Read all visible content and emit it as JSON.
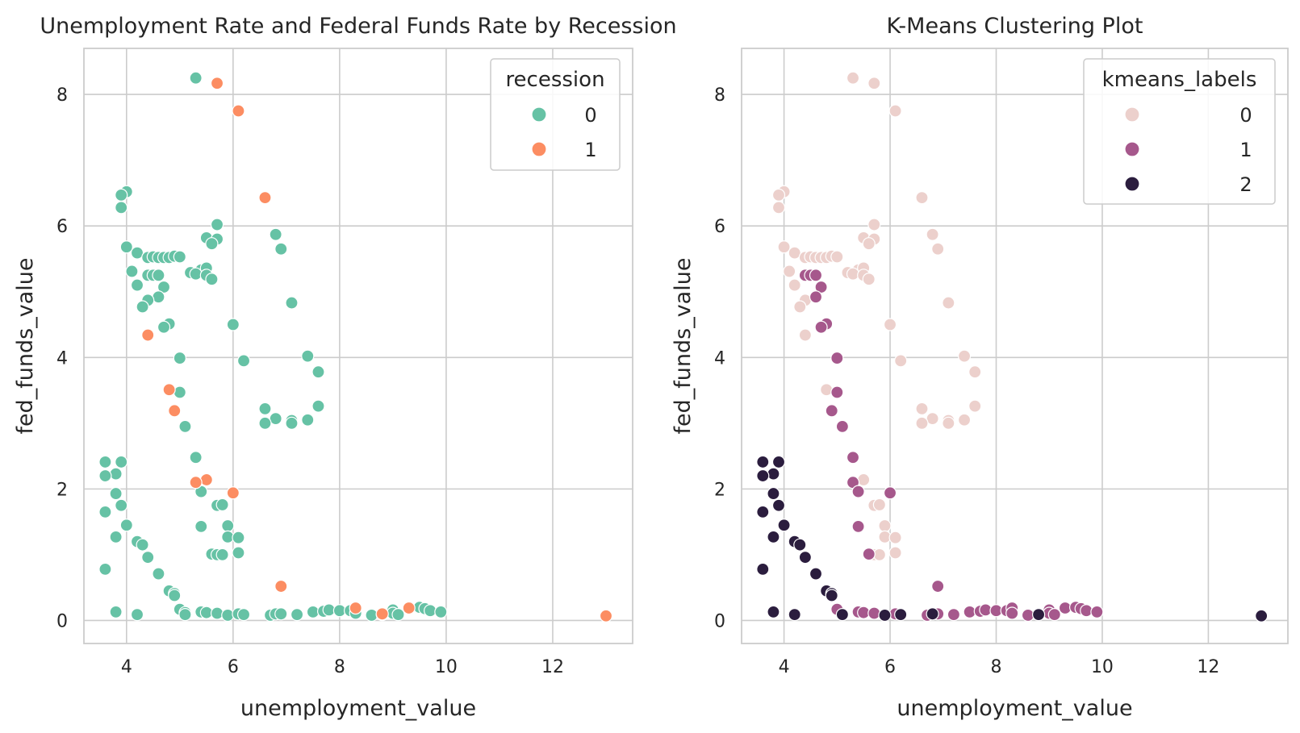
{
  "chart_data": [
    {
      "type": "scatter",
      "title": "Unemployment Rate and Federal Funds Rate by Recession",
      "xlabel": "unemployment_value",
      "ylabel": "fed_funds_value",
      "xlim": [
        3.2,
        13.5
      ],
      "ylim": [
        -0.35,
        8.7
      ],
      "xticks": [
        "4",
        "6",
        "8",
        "10",
        "12"
      ],
      "yticks": [
        "0",
        "2",
        "4",
        "6",
        "8"
      ],
      "grid": true,
      "legend": {
        "title": "recession",
        "placement": "top-right"
      },
      "series": [
        {
          "name": "0",
          "color": "#66c2a5",
          "points": [
            [
              5.3,
              8.25
            ],
            [
              4.0,
              6.52
            ],
            [
              3.9,
              6.47
            ],
            [
              3.9,
              6.28
            ],
            [
              5.7,
              6.02
            ],
            [
              6.8,
              5.87
            ],
            [
              4.0,
              5.68
            ],
            [
              6.9,
              5.65
            ],
            [
              5.5,
              5.82
            ],
            [
              5.7,
              5.8
            ],
            [
              5.6,
              5.73
            ],
            [
              4.2,
              5.59
            ],
            [
              4.4,
              5.52
            ],
            [
              4.5,
              5.53
            ],
            [
              4.6,
              5.52
            ],
            [
              4.7,
              5.52
            ],
            [
              4.8,
              5.52
            ],
            [
              4.9,
              5.54
            ],
            [
              5.0,
              5.53
            ],
            [
              5.4,
              5.33
            ],
            [
              5.5,
              5.36
            ],
            [
              5.2,
              5.29
            ],
            [
              5.3,
              5.27
            ],
            [
              4.1,
              5.31
            ],
            [
              4.4,
              5.25
            ],
            [
              4.5,
              5.25
            ],
            [
              4.6,
              5.25
            ],
            [
              5.5,
              5.25
            ],
            [
              5.6,
              5.19
            ],
            [
              4.2,
              5.1
            ],
            [
              4.7,
              5.07
            ],
            [
              4.6,
              4.92
            ],
            [
              4.4,
              4.87
            ],
            [
              4.3,
              4.77
            ],
            [
              7.1,
              4.83
            ],
            [
              4.8,
              4.51
            ],
            [
              4.7,
              4.46
            ],
            [
              6.0,
              4.5
            ],
            [
              7.4,
              4.02
            ],
            [
              5.0,
              3.99
            ],
            [
              6.2,
              3.95
            ],
            [
              7.6,
              3.78
            ],
            [
              5.0,
              3.47
            ],
            [
              7.6,
              3.26
            ],
            [
              6.6,
              3.22
            ],
            [
              6.8,
              3.07
            ],
            [
              7.1,
              3.04
            ],
            [
              7.4,
              3.05
            ],
            [
              6.6,
              3.0
            ],
            [
              7.1,
              3.0
            ],
            [
              5.1,
              2.95
            ],
            [
              5.3,
              2.48
            ],
            [
              3.6,
              2.41
            ],
            [
              3.9,
              2.41
            ],
            [
              3.8,
              2.23
            ],
            [
              3.6,
              2.2
            ],
            [
              5.4,
              1.96
            ],
            [
              3.8,
              1.93
            ],
            [
              3.9,
              1.75
            ],
            [
              5.7,
              1.75
            ],
            [
              5.8,
              1.76
            ],
            [
              3.6,
              1.65
            ],
            [
              4.0,
              1.45
            ],
            [
              5.4,
              1.43
            ],
            [
              5.9,
              1.44
            ],
            [
              3.8,
              1.27
            ],
            [
              5.9,
              1.27
            ],
            [
              6.1,
              1.26
            ],
            [
              4.2,
              1.2
            ],
            [
              4.3,
              1.15
            ],
            [
              5.6,
              1.01
            ],
            [
              5.7,
              1.0
            ],
            [
              5.8,
              1.0
            ],
            [
              6.1,
              1.03
            ],
            [
              4.4,
              0.96
            ],
            [
              3.6,
              0.78
            ],
            [
              4.6,
              0.71
            ],
            [
              4.8,
              0.45
            ],
            [
              4.9,
              0.41
            ],
            [
              4.9,
              0.38
            ],
            [
              5.0,
              0.17
            ],
            [
              5.1,
              0.12
            ],
            [
              5.1,
              0.09
            ],
            [
              5.4,
              0.13
            ],
            [
              5.5,
              0.12
            ],
            [
              5.7,
              0.11
            ],
            [
              5.9,
              0.08
            ],
            [
              6.1,
              0.1
            ],
            [
              6.2,
              0.09
            ],
            [
              6.7,
              0.08
            ],
            [
              6.8,
              0.1
            ],
            [
              6.9,
              0.1
            ],
            [
              7.2,
              0.09
            ],
            [
              7.5,
              0.13
            ],
            [
              7.7,
              0.14
            ],
            [
              7.8,
              0.16
            ],
            [
              8.0,
              0.15
            ],
            [
              8.2,
              0.15
            ],
            [
              8.3,
              0.11
            ],
            [
              8.6,
              0.08
            ],
            [
              8.8,
              0.09
            ],
            [
              9.0,
              0.16
            ],
            [
              9.0,
              0.11
            ],
            [
              9.1,
              0.09
            ],
            [
              9.5,
              0.2
            ],
            [
              9.6,
              0.18
            ],
            [
              9.7,
              0.15
            ],
            [
              9.9,
              0.13
            ],
            [
              3.8,
              0.13
            ],
            [
              4.2,
              0.09
            ]
          ]
        },
        {
          "name": "1",
          "color": "#fc8d62",
          "points": [
            [
              5.7,
              8.17
            ],
            [
              6.1,
              7.75
            ],
            [
              6.6,
              6.43
            ],
            [
              4.4,
              4.34
            ],
            [
              4.8,
              3.51
            ],
            [
              4.9,
              3.19
            ],
            [
              5.5,
              2.14
            ],
            [
              5.3,
              2.1
            ],
            [
              6.0,
              1.94
            ],
            [
              6.9,
              0.52
            ],
            [
              8.3,
              0.19
            ],
            [
              9.3,
              0.19
            ],
            [
              8.8,
              0.1
            ],
            [
              13.0,
              0.07
            ]
          ]
        }
      ]
    },
    {
      "type": "scatter",
      "title": "K-Means Clustering Plot",
      "xlabel": "unemployment_value",
      "ylabel": "fed_funds_value",
      "xlim": [
        3.2,
        13.5
      ],
      "ylim": [
        -0.35,
        8.7
      ],
      "xticks": [
        "4",
        "6",
        "8",
        "10",
        "12"
      ],
      "yticks": [
        "0",
        "2",
        "4",
        "6",
        "8"
      ],
      "grid": true,
      "legend": {
        "title": "kmeans_labels",
        "placement": "top-right"
      },
      "series": [
        {
          "name": "0",
          "color": "#ecd0cc",
          "points": [
            [
              5.3,
              8.25
            ],
            [
              5.7,
              8.17
            ],
            [
              6.1,
              7.75
            ],
            [
              4.0,
              6.52
            ],
            [
              3.9,
              6.47
            ],
            [
              6.6,
              6.43
            ],
            [
              3.9,
              6.28
            ],
            [
              5.7,
              6.02
            ],
            [
              6.8,
              5.87
            ],
            [
              4.0,
              5.68
            ],
            [
              6.9,
              5.65
            ],
            [
              5.5,
              5.82
            ],
            [
              5.7,
              5.8
            ],
            [
              5.6,
              5.73
            ],
            [
              4.2,
              5.59
            ],
            [
              4.4,
              5.52
            ],
            [
              4.5,
              5.53
            ],
            [
              4.6,
              5.52
            ],
            [
              4.7,
              5.52
            ],
            [
              4.8,
              5.52
            ],
            [
              4.9,
              5.54
            ],
            [
              5.0,
              5.53
            ],
            [
              5.4,
              5.33
            ],
            [
              5.5,
              5.36
            ],
            [
              5.2,
              5.29
            ],
            [
              5.3,
              5.27
            ],
            [
              4.1,
              5.31
            ],
            [
              5.5,
              5.25
            ],
            [
              5.6,
              5.19
            ],
            [
              4.2,
              5.1
            ],
            [
              4.4,
              4.87
            ],
            [
              4.3,
              4.77
            ],
            [
              7.1,
              4.83
            ],
            [
              6.0,
              4.5
            ],
            [
              4.4,
              4.34
            ],
            [
              7.4,
              4.02
            ],
            [
              6.2,
              3.95
            ],
            [
              7.6,
              3.78
            ],
            [
              4.8,
              3.51
            ],
            [
              7.6,
              3.26
            ],
            [
              6.6,
              3.22
            ],
            [
              6.8,
              3.07
            ],
            [
              7.1,
              3.04
            ],
            [
              7.4,
              3.05
            ],
            [
              6.6,
              3.0
            ],
            [
              7.1,
              3.0
            ],
            [
              5.5,
              2.14
            ],
            [
              5.7,
              1.75
            ],
            [
              5.8,
              1.76
            ],
            [
              5.9,
              1.44
            ],
            [
              5.9,
              1.27
            ],
            [
              6.1,
              1.26
            ],
            [
              5.7,
              1.0
            ],
            [
              5.8,
              1.0
            ],
            [
              6.1,
              1.03
            ]
          ]
        },
        {
          "name": "1",
          "color": "#a6588c",
          "points": [
            [
              4.4,
              5.25
            ],
            [
              4.5,
              5.25
            ],
            [
              4.6,
              5.25
            ],
            [
              4.7,
              5.07
            ],
            [
              4.6,
              4.92
            ],
            [
              4.8,
              4.51
            ],
            [
              4.7,
              4.46
            ],
            [
              5.0,
              3.99
            ],
            [
              5.0,
              3.47
            ],
            [
              4.9,
              3.19
            ],
            [
              5.1,
              2.95
            ],
            [
              5.3,
              2.48
            ],
            [
              5.3,
              2.1
            ],
            [
              5.4,
              1.96
            ],
            [
              6.0,
              1.94
            ],
            [
              5.4,
              1.43
            ],
            [
              5.6,
              1.01
            ],
            [
              6.9,
              0.52
            ],
            [
              5.0,
              0.17
            ],
            [
              5.4,
              0.13
            ],
            [
              5.5,
              0.12
            ],
            [
              5.7,
              0.11
            ],
            [
              6.1,
              0.1
            ],
            [
              6.7,
              0.08
            ],
            [
              6.9,
              0.1
            ],
            [
              7.2,
              0.09
            ],
            [
              7.5,
              0.13
            ],
            [
              7.7,
              0.14
            ],
            [
              7.8,
              0.16
            ],
            [
              8.0,
              0.15
            ],
            [
              8.2,
              0.15
            ],
            [
              8.3,
              0.19
            ],
            [
              8.3,
              0.11
            ],
            [
              8.6,
              0.08
            ],
            [
              9.0,
              0.16
            ],
            [
              9.0,
              0.11
            ],
            [
              9.1,
              0.09
            ],
            [
              9.3,
              0.19
            ],
            [
              9.5,
              0.2
            ],
            [
              9.6,
              0.18
            ],
            [
              9.7,
              0.15
            ],
            [
              9.9,
              0.13
            ]
          ]
        },
        {
          "name": "2",
          "color": "#2b1d3e",
          "points": [
            [
              3.6,
              2.41
            ],
            [
              3.9,
              2.41
            ],
            [
              3.8,
              2.23
            ],
            [
              3.6,
              2.2
            ],
            [
              3.8,
              1.93
            ],
            [
              3.9,
              1.75
            ],
            [
              3.6,
              1.65
            ],
            [
              4.0,
              1.45
            ],
            [
              3.8,
              1.27
            ],
            [
              4.2,
              1.2
            ],
            [
              4.3,
              1.15
            ],
            [
              4.4,
              0.96
            ],
            [
              3.6,
              0.78
            ],
            [
              4.6,
              0.71
            ],
            [
              4.8,
              0.45
            ],
            [
              4.9,
              0.41
            ],
            [
              4.9,
              0.38
            ],
            [
              3.8,
              0.13
            ],
            [
              4.2,
              0.09
            ],
            [
              5.1,
              0.09
            ],
            [
              5.9,
              0.08
            ],
            [
              6.2,
              0.09
            ],
            [
              6.8,
              0.1
            ],
            [
              8.8,
              0.09
            ],
            [
              13.0,
              0.07
            ]
          ]
        }
      ]
    }
  ]
}
